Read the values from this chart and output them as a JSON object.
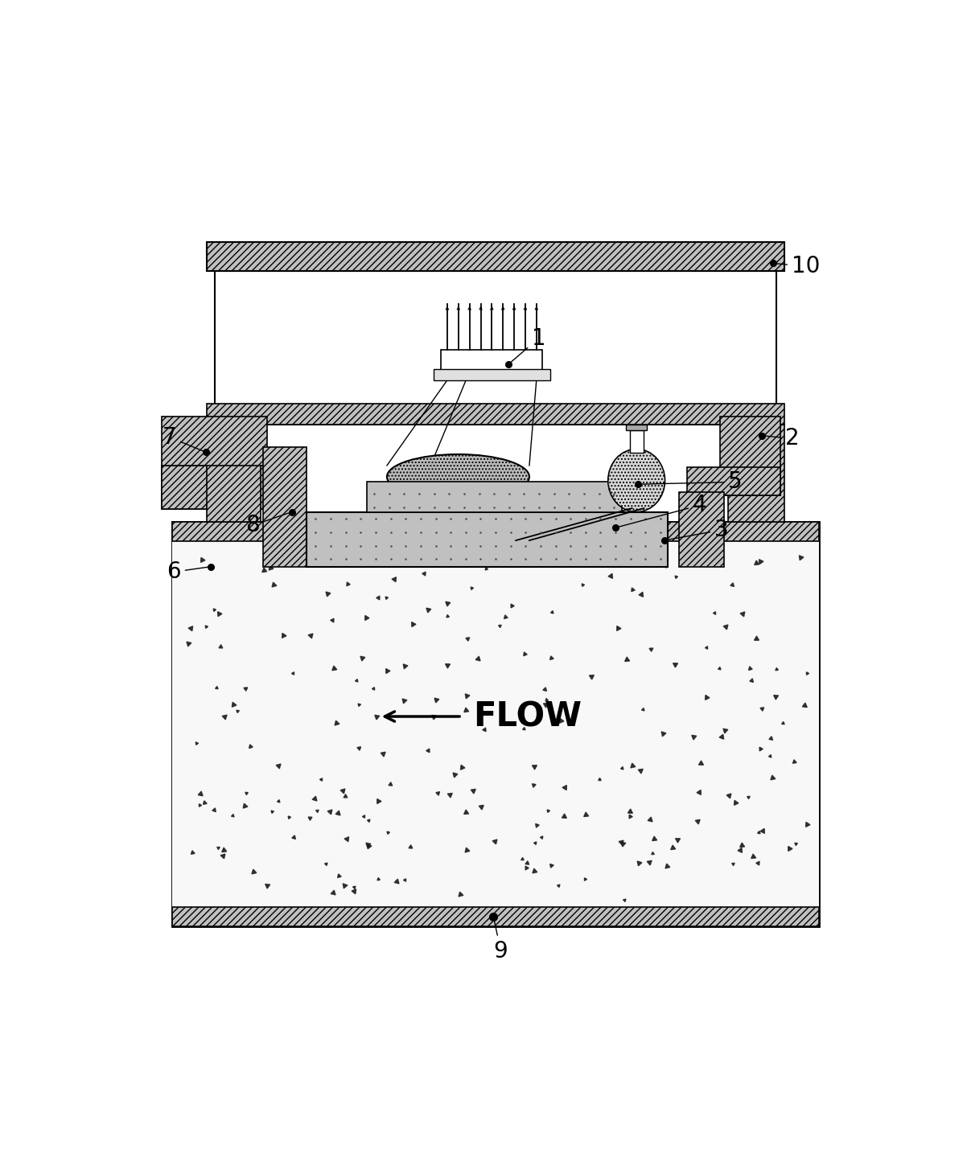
{
  "fig_width": 12.02,
  "fig_height": 14.6,
  "bg_color": "#ffffff",
  "hatch_fc": "#c0c0c0",
  "flow_text": "FLOW",
  "n_particles": 220,
  "particle_seed": 77,
  "n_spikes": 9,
  "label_fontsize": 20
}
